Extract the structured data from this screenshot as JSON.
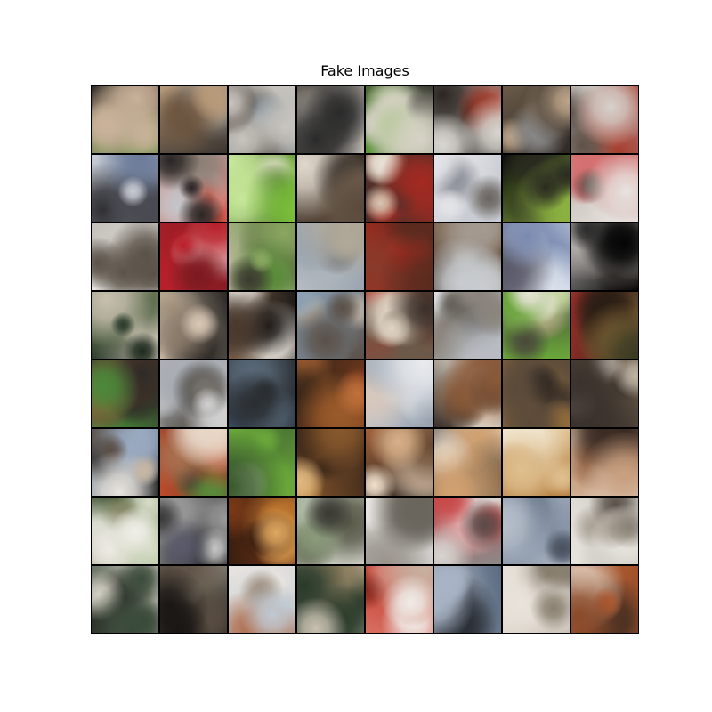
{
  "title": "Fake Images",
  "grid": {
    "rows": 8,
    "cols": 8,
    "tile_palettes": [
      [
        "#2e2a25",
        "#5a8a3a",
        "#7a5a3e",
        "#c9b29a",
        "#9aa3a8"
      ],
      [
        "#3a3430",
        "#6d5640",
        "#b79a7a",
        "#2a2622",
        "#8e8a86"
      ],
      [
        "#8a9aa4",
        "#3b3530",
        "#c8c4be",
        "#5a5048",
        "#a7b2b8"
      ],
      [
        "#3d3b3a",
        "#7a8a9a",
        "#c5c0b8",
        "#2a2a2a",
        "#6e665e"
      ],
      [
        "#5c9a3a",
        "#9ec07a",
        "#3c3a34",
        "#d7d2c6",
        "#7b6a50"
      ],
      [
        "#2c2622",
        "#b7a488",
        "#d8d6d0",
        "#6d584a",
        "#a33a2a"
      ],
      [
        "#6a5a48",
        "#bfa68a",
        "#2e2824",
        "#8a8a8a",
        "#d0c0a8"
      ],
      [
        "#a0a4a8",
        "#5e5248",
        "#d6d2cc",
        "#3a342e",
        "#a53c2e"
      ],
      [
        "#8e9fb2",
        "#4a4a52",
        "#c8ccd4",
        "#2c2c30",
        "#6a7a9a"
      ],
      [
        "#c4c6ca",
        "#2a2624",
        "#d85040",
        "#8a7e74",
        "#e0dcd6"
      ],
      [
        "#7abf3a",
        "#c8e89a",
        "#3c5a2a",
        "#e6e0d0",
        "#6d5a3e"
      ],
      [
        "#2a2420",
        "#c7b8a4",
        "#5a4a3c",
        "#e0d8cc",
        "#8c7a66"
      ],
      [
        "#a42a22",
        "#d8c6b0",
        "#3a302a",
        "#e8e2d8",
        "#6a4c3a"
      ],
      [
        "#c8ccd2",
        "#8a8e96",
        "#e4e4e8",
        "#6a6460",
        "#a8aeb8"
      ],
      [
        "#0a0a0a",
        "#2a2a20",
        "#8ab040",
        "#5a5a3a",
        "#c0c8a0"
      ],
      [
        "#c0b8b0",
        "#b02a2e",
        "#e8e4e0",
        "#6a5e58",
        "#d47070"
      ],
      [
        "#c4c0ba",
        "#8a8276",
        "#e6e4e0",
        "#5a5248",
        "#a8a09a"
      ],
      [
        "#b8202a",
        "#e05a60",
        "#7a1a20",
        "#f0c8c8",
        "#9a3a3e"
      ],
      [
        "#5a8a3a",
        "#3a3a2e",
        "#c8c0a8",
        "#8aa860",
        "#2a2a22"
      ],
      [
        "#9aa4ae",
        "#6a7480",
        "#c8ccd0",
        "#3a404a",
        "#b0a898"
      ],
      [
        "#a82a20",
        "#e0604a",
        "#5a2a1e",
        "#c8a890",
        "#8a3a2a"
      ],
      [
        "#7a5a3e",
        "#c8ccd0",
        "#3a2e26",
        "#a49a90",
        "#e0dcd8"
      ],
      [
        "#dfe6f0",
        "#2e2a2a",
        "#7a8ab0",
        "#f4f4f6",
        "#5a5a6a"
      ],
      [
        "#050505",
        "#2a2a2a",
        "#b8b4b0",
        "#6a625a",
        "#000000"
      ],
      [
        "#2a3a2a",
        "#5a6a48",
        "#c8c0b0",
        "#1e2a1e",
        "#8a8a70"
      ],
      [
        "#2a2624",
        "#8a7a6a",
        "#d8c8b4",
        "#4a3e34",
        "#b4a48e"
      ],
      [
        "#1e1a18",
        "#e8dcc8",
        "#8a6a4c",
        "#f0ece6",
        "#4a3a2e"
      ],
      [
        "#8aa0b4",
        "#d8d4ce",
        "#5a5048",
        "#b8b0a4",
        "#7a6e62"
      ],
      [
        "#6a5a4a",
        "#c8b8a2",
        "#a83a2a",
        "#3a302a",
        "#e0d6c6"
      ],
      [
        "#b8bcc2",
        "#5a5650",
        "#dcdcdc",
        "#8a847c",
        "#3a3632"
      ],
      [
        "#6aa83a",
        "#c8d8a0",
        "#4a4a3a",
        "#e8e4d8",
        "#8a7a5a"
      ],
      [
        "#2a1e14",
        "#6a4a2a",
        "#a0302a",
        "#3a3a22",
        "#8a6a3a"
      ],
      [
        "#2e2a26",
        "#7a6a56",
        "#4a8a3a",
        "#d8c8b0",
        "#a0583a"
      ],
      [
        "#a8acb2",
        "#5a5650",
        "#d0d0d0",
        "#7a7670",
        "#3a3834"
      ],
      [
        "#3a4a5a",
        "#8a96a4",
        "#2a2e32",
        "#c0c4c8",
        "#5a6a7a"
      ],
      [
        "#7a3a1e",
        "#c0703a",
        "#3a2618",
        "#e0b890",
        "#9a5a2a"
      ],
      [
        "#c8d0da",
        "#e8eaee",
        "#9aa4b0",
        "#d8c8bc",
        "#b04030"
      ],
      [
        "#3a2e26",
        "#d8a060",
        "#f0e8dc",
        "#8a5a3a",
        "#1a1614"
      ],
      [
        "#a8783a",
        "#f0ece4",
        "#5a4a3a",
        "#d8c8b0",
        "#2a2420"
      ],
      [
        "#6a5a4a",
        "#c0b4a4",
        "#3a322c",
        "#e0d8ce",
        "#8a7e70"
      ],
      [
        "#1a1a1a",
        "#e8e4de",
        "#9aaac0",
        "#5a4e44",
        "#c8b8a4"
      ],
      [
        "#c04a2a",
        "#e8d8c8",
        "#4a3a2e",
        "#5a8a3a",
        "#a87050"
      ],
      [
        "#6aa83a",
        "#c0d8a0",
        "#3a5a2e",
        "#e6ecd8",
        "#8a9a70"
      ],
      [
        "#8a5a2e",
        "#c8904a",
        "#3a2618",
        "#e0b880",
        "#5a3a22"
      ],
      [
        "#3a2e24",
        "#d8b088",
        "#a0603a",
        "#f0e0cc",
        "#6a4a32"
      ],
      [
        "#1e1a18",
        "#d0a070",
        "#f0e6d8",
        "#8a6a4a",
        "#4a3a2e"
      ],
      [
        "#b07a3a",
        "#3a2a1e",
        "#e0c090",
        "#6a4a2a",
        "#f0e6d0"
      ],
      [
        "#c8a080",
        "#3a2a22",
        "#e8d8c8",
        "#8a5a3e",
        "#5a6a8a"
      ],
      [
        "#5a9a3a",
        "#d8dcc8",
        "#3a4a2e",
        "#f0eee8",
        "#8a8a6a"
      ],
      [
        "#0a0a0a",
        "#3a3a3a",
        "#9a9a9a",
        "#5a5a6a",
        "#c8c8c8"
      ],
      [
        "#7a3a18",
        "#c07a30",
        "#3a1e10",
        "#e0a860",
        "#5a2a14"
      ],
      [
        "#a8b4a0",
        "#5a5a4a",
        "#d8d8d0",
        "#3a3a34",
        "#8a9a7a"
      ],
      [
        "#c8c8c8",
        "#6a665e",
        "#e8e6e2",
        "#3a3634",
        "#9a948c"
      ],
      [
        "#c84a4a",
        "#e8b0b0",
        "#8a8a8a",
        "#d8d4d0",
        "#5a4a48"
      ],
      [
        "#6a7a90",
        "#2a2e36",
        "#b8c0cc",
        "#4a5260",
        "#8a96a8"
      ],
      [
        "#c8c4be",
        "#8a8276",
        "#e8e4de",
        "#5a524a",
        "#a8a094"
      ],
      [
        "#3a4a3a",
        "#a8b0a0",
        "#d8d4c8",
        "#2a2a24",
        "#6a7a60"
      ],
      [
        "#1a1614",
        "#5a4e42",
        "#a8a090",
        "#2e2a26",
        "#7a6e60"
      ],
      [
        "#c0c8d0",
        "#9a8a7a",
        "#e8e4e0",
        "#6a5a4e",
        "#b07050"
      ],
      [
        "#2a3a2a",
        "#5a8a3a",
        "#c8c0b0",
        "#1a1a18",
        "#8a7a5a"
      ],
      [
        "#b82a22",
        "#f0ece8",
        "#d87060",
        "#8a2a20",
        "#c8b0a0"
      ],
      [
        "#5a6a80",
        "#2a2e36",
        "#a8b4c4",
        "#4a4a4a",
        "#8a94a2"
      ],
      [
        "#c8c0b4",
        "#5a5248",
        "#e8e2da",
        "#2e2a26",
        "#8a8070"
      ],
      [
        "#8a4a2a",
        "#e8d8c8",
        "#c06030",
        "#3a2a20",
        "#d8b090"
      ]
    ]
  }
}
